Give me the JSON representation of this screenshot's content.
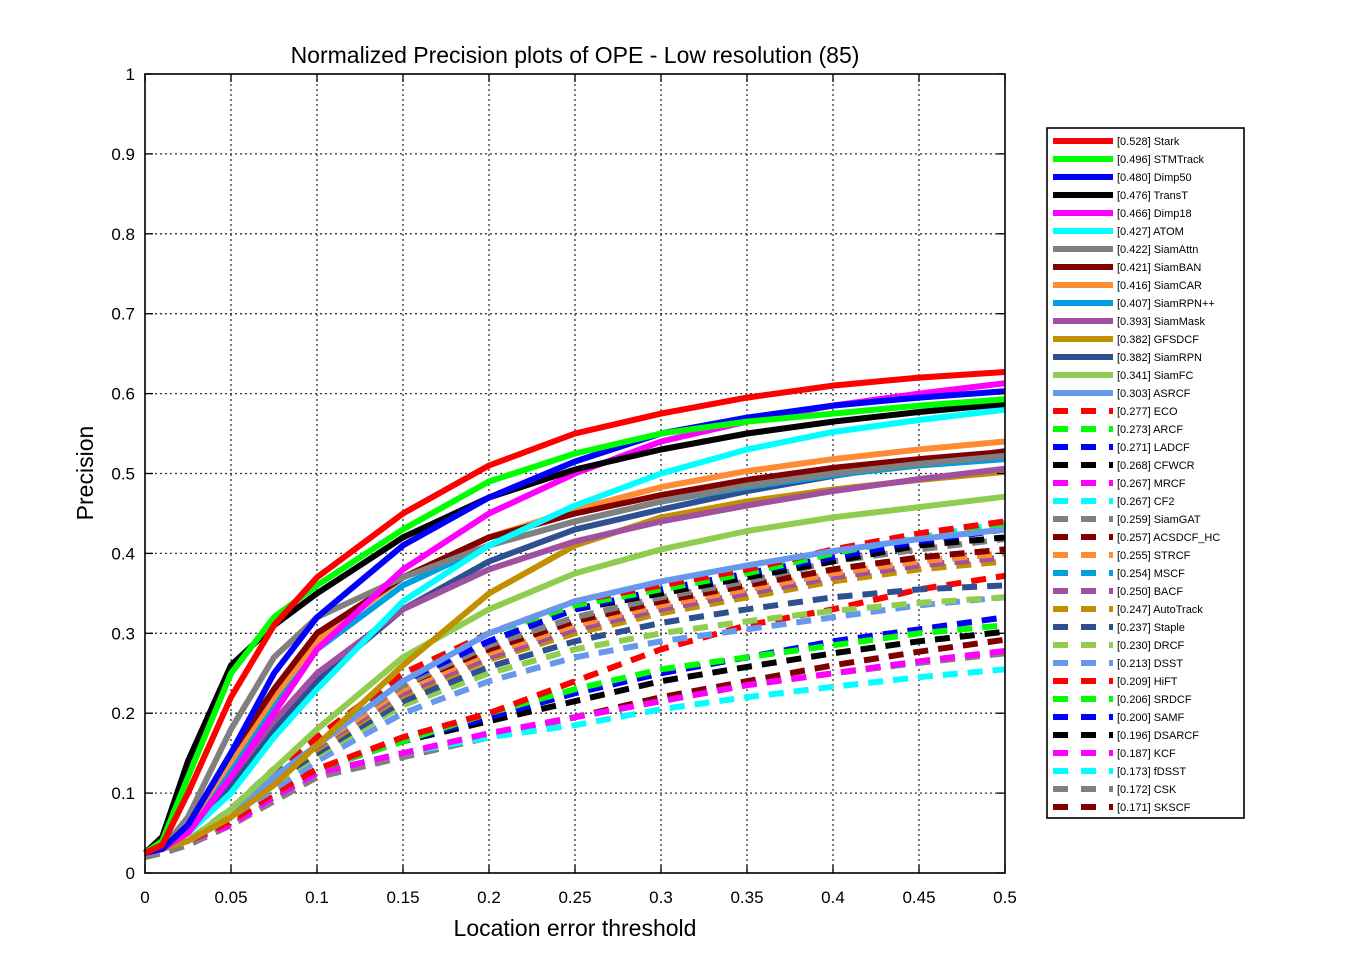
{
  "chart_data": {
    "type": "line",
    "title": "Normalized Precision plots of OPE - Low resolution (85)",
    "xlabel": "Location error threshold",
    "ylabel": "Precision",
    "xlim": [
      0,
      0.5
    ],
    "ylim": [
      0,
      1
    ],
    "xticks": [
      "0",
      "0.05",
      "0.1",
      "0.15",
      "0.2",
      "0.25",
      "0.3",
      "0.35",
      "0.4",
      "0.45",
      "0.5"
    ],
    "yticks": [
      "0",
      "0.1",
      "0.2",
      "0.3",
      "0.4",
      "0.5",
      "0.6",
      "0.7",
      "0.8",
      "0.9",
      "1"
    ],
    "grid": true,
    "legend_position": "outside-right",
    "x": [
      0,
      0.01,
      0.025,
      0.05,
      0.075,
      0.1,
      0.15,
      0.2,
      0.25,
      0.3,
      0.35,
      0.4,
      0.45,
      0.5
    ],
    "series": [
      {
        "name": "[0.528] Stark",
        "color": "#FF0000",
        "dash": "solid",
        "values": [
          0.025,
          0.035,
          0.1,
          0.22,
          0.31,
          0.37,
          0.45,
          0.51,
          0.55,
          0.575,
          0.595,
          0.61,
          0.62,
          0.627
        ]
      },
      {
        "name": "[0.496] STMTrack",
        "color": "#00FF00",
        "dash": "solid",
        "values": [
          0.025,
          0.04,
          0.12,
          0.25,
          0.32,
          0.36,
          0.43,
          0.49,
          0.525,
          0.55,
          0.565,
          0.575,
          0.585,
          0.593
        ]
      },
      {
        "name": "[0.480] Dimp50",
        "color": "#0000FF",
        "dash": "solid",
        "values": [
          0.025,
          0.03,
          0.06,
          0.15,
          0.25,
          0.32,
          0.41,
          0.47,
          0.515,
          0.55,
          0.57,
          0.585,
          0.595,
          0.603
        ]
      },
      {
        "name": "[0.476] TransT",
        "color": "#000000",
        "dash": "solid",
        "values": [
          0.025,
          0.045,
          0.14,
          0.26,
          0.31,
          0.35,
          0.42,
          0.47,
          0.505,
          0.53,
          0.55,
          0.565,
          0.577,
          0.587
        ]
      },
      {
        "name": "[0.466] Dimp18",
        "color": "#FF00FF",
        "dash": "solid",
        "values": [
          0.025,
          0.03,
          0.05,
          0.12,
          0.2,
          0.28,
          0.38,
          0.45,
          0.5,
          0.54,
          0.565,
          0.585,
          0.6,
          0.613
        ]
      },
      {
        "name": "[0.427] ATOM",
        "color": "#00FFFF",
        "dash": "solid",
        "values": [
          0.025,
          0.03,
          0.05,
          0.1,
          0.17,
          0.23,
          0.34,
          0.41,
          0.46,
          0.5,
          0.53,
          0.552,
          0.567,
          0.58
        ]
      },
      {
        "name": "[0.422] SiamAttn",
        "color": "#808080",
        "dash": "solid",
        "values": [
          0.025,
          0.03,
          0.07,
          0.18,
          0.27,
          0.32,
          0.37,
          0.41,
          0.44,
          0.465,
          0.485,
          0.5,
          0.512,
          0.522
        ]
      },
      {
        "name": "[0.421] SiamBAN",
        "color": "#800000",
        "dash": "solid",
        "values": [
          0.025,
          0.03,
          0.06,
          0.15,
          0.23,
          0.3,
          0.37,
          0.42,
          0.45,
          0.473,
          0.492,
          0.507,
          0.518,
          0.527
        ]
      },
      {
        "name": "[0.416] SiamCAR",
        "color": "#FF8C35",
        "dash": "solid",
        "values": [
          0.025,
          0.03,
          0.06,
          0.14,
          0.22,
          0.29,
          0.37,
          0.42,
          0.455,
          0.483,
          0.503,
          0.518,
          0.53,
          0.54
        ]
      },
      {
        "name": "[0.407] SiamRPN++",
        "color": "#00A0E0",
        "dash": "solid",
        "values": [
          0.025,
          0.03,
          0.06,
          0.13,
          0.21,
          0.28,
          0.36,
          0.41,
          0.44,
          0.465,
          0.483,
          0.498,
          0.51,
          0.518
        ]
      },
      {
        "name": "[0.393] SiamMask",
        "color": "#A050A0",
        "dash": "solid",
        "values": [
          0.025,
          0.03,
          0.055,
          0.12,
          0.19,
          0.25,
          0.33,
          0.38,
          0.415,
          0.44,
          0.46,
          0.478,
          0.493,
          0.506
        ]
      },
      {
        "name": "[0.382] GFSDCF",
        "color": "#C09000",
        "dash": "solid",
        "values": [
          0.025,
          0.03,
          0.04,
          0.07,
          0.11,
          0.16,
          0.26,
          0.35,
          0.41,
          0.445,
          0.465,
          0.48,
          0.492,
          0.502
        ]
      },
      {
        "name": "[0.382] SiamRPN",
        "color": "#2E5090",
        "dash": "solid",
        "values": [
          0.025,
          0.03,
          0.05,
          0.11,
          0.18,
          0.24,
          0.33,
          0.39,
          0.43,
          0.455,
          0.478,
          0.497,
          0.513,
          0.528
        ]
      },
      {
        "name": "[0.341] SiamFC",
        "color": "#90CC50",
        "dash": "solid",
        "values": [
          0.025,
          0.03,
          0.04,
          0.08,
          0.13,
          0.18,
          0.27,
          0.33,
          0.375,
          0.405,
          0.428,
          0.445,
          0.458,
          0.471
        ]
      },
      {
        "name": "[0.303] ASRCF",
        "color": "#6699EE",
        "dash": "solid",
        "values": [
          0.025,
          0.03,
          0.04,
          0.07,
          0.12,
          0.16,
          0.24,
          0.3,
          0.34,
          0.365,
          0.385,
          0.403,
          0.418,
          0.43
        ]
      },
      {
        "name": "[0.277] ECO",
        "color": "#FF0000",
        "dash": "dash",
        "values": [
          0.025,
          0.03,
          0.04,
          0.08,
          0.13,
          0.17,
          0.25,
          0.3,
          0.34,
          0.36,
          0.38,
          0.405,
          0.425,
          0.44
        ]
      },
      {
        "name": "[0.273] ARCF",
        "color": "#00FF00",
        "dash": "dash",
        "values": [
          0.025,
          0.03,
          0.04,
          0.08,
          0.13,
          0.17,
          0.25,
          0.3,
          0.335,
          0.355,
          0.375,
          0.4,
          0.42,
          0.435
        ]
      },
      {
        "name": "[0.271] LADCF",
        "color": "#0000FF",
        "dash": "dash",
        "values": [
          0.025,
          0.03,
          0.04,
          0.08,
          0.13,
          0.17,
          0.24,
          0.29,
          0.33,
          0.355,
          0.375,
          0.395,
          0.415,
          0.43
        ]
      },
      {
        "name": "[0.268] CFWCR",
        "color": "#000000",
        "dash": "dash",
        "values": [
          0.025,
          0.03,
          0.04,
          0.08,
          0.13,
          0.17,
          0.24,
          0.29,
          0.33,
          0.35,
          0.37,
          0.39,
          0.41,
          0.42
        ]
      },
      {
        "name": "[0.267] MRCF",
        "color": "#FF00FF",
        "dash": "dash",
        "values": [
          0.025,
          0.03,
          0.04,
          0.08,
          0.13,
          0.17,
          0.24,
          0.29,
          0.33,
          0.35,
          0.37,
          0.395,
          0.415,
          0.43
        ]
      },
      {
        "name": "[0.267] CF2",
        "color": "#00FFFF",
        "dash": "dash",
        "values": [
          0.025,
          0.03,
          0.04,
          0.08,
          0.13,
          0.17,
          0.24,
          0.29,
          0.33,
          0.355,
          0.375,
          0.4,
          0.42,
          0.438
        ]
      },
      {
        "name": "[0.259] SiamGAT",
        "color": "#808080",
        "dash": "dash",
        "values": [
          0.025,
          0.03,
          0.04,
          0.08,
          0.125,
          0.165,
          0.235,
          0.285,
          0.32,
          0.345,
          0.365,
          0.39,
          0.405,
          0.418
        ]
      },
      {
        "name": "[0.257] ACSDCF_HC",
        "color": "#800000",
        "dash": "dash",
        "values": [
          0.025,
          0.03,
          0.04,
          0.08,
          0.125,
          0.165,
          0.235,
          0.28,
          0.315,
          0.34,
          0.36,
          0.38,
          0.395,
          0.405
        ]
      },
      {
        "name": "[0.255] STRCF",
        "color": "#FF8C35",
        "dash": "dash",
        "values": [
          0.025,
          0.03,
          0.04,
          0.08,
          0.12,
          0.16,
          0.23,
          0.275,
          0.31,
          0.335,
          0.355,
          0.375,
          0.39,
          0.4
        ]
      },
      {
        "name": "[0.254] MSCF",
        "color": "#00A0E0",
        "dash": "dash",
        "values": [
          0.025,
          0.03,
          0.04,
          0.08,
          0.12,
          0.16,
          0.23,
          0.275,
          0.31,
          0.335,
          0.355,
          0.375,
          0.39,
          0.4
        ]
      },
      {
        "name": "[0.250] BACF",
        "color": "#A050A0",
        "dash": "dash",
        "values": [
          0.025,
          0.03,
          0.04,
          0.078,
          0.12,
          0.158,
          0.225,
          0.27,
          0.305,
          0.33,
          0.35,
          0.37,
          0.385,
          0.395
        ]
      },
      {
        "name": "[0.247] AutoTrack",
        "color": "#C09000",
        "dash": "dash",
        "values": [
          0.025,
          0.03,
          0.04,
          0.077,
          0.118,
          0.155,
          0.222,
          0.267,
          0.3,
          0.325,
          0.345,
          0.365,
          0.38,
          0.39
        ]
      },
      {
        "name": "[0.237] Staple",
        "color": "#2E5090",
        "dash": "dash",
        "values": [
          0.025,
          0.03,
          0.04,
          0.075,
          0.115,
          0.15,
          0.215,
          0.258,
          0.29,
          0.313,
          0.33,
          0.345,
          0.355,
          0.36
        ]
      },
      {
        "name": "[0.230] DRCF",
        "color": "#90CC50",
        "dash": "dash",
        "values": [
          0.025,
          0.03,
          0.04,
          0.073,
          0.112,
          0.147,
          0.21,
          0.25,
          0.28,
          0.3,
          0.315,
          0.328,
          0.338,
          0.345
        ]
      },
      {
        "name": "[0.213] DSST",
        "color": "#6699EE",
        "dash": "dash",
        "values": [
          0.025,
          0.03,
          0.04,
          0.07,
          0.105,
          0.14,
          0.2,
          0.24,
          0.27,
          0.29,
          0.305,
          0.32,
          0.335,
          0.345
        ]
      },
      {
        "name": "[0.209] HiFT",
        "color": "#FF0000",
        "dash": "dash",
        "values": [
          0.025,
          0.03,
          0.04,
          0.065,
          0.1,
          0.13,
          0.17,
          0.2,
          0.24,
          0.28,
          0.31,
          0.33,
          0.355,
          0.372
        ]
      },
      {
        "name": "[0.206] SRDCF",
        "color": "#00FF00",
        "dash": "dash",
        "values": [
          0.025,
          0.03,
          0.04,
          0.065,
          0.1,
          0.13,
          0.165,
          0.2,
          0.23,
          0.255,
          0.27,
          0.285,
          0.3,
          0.31
        ]
      },
      {
        "name": "[0.200] SAMF",
        "color": "#0000FF",
        "dash": "dash",
        "values": [
          0.025,
          0.03,
          0.04,
          0.065,
          0.1,
          0.13,
          0.165,
          0.195,
          0.225,
          0.25,
          0.27,
          0.29,
          0.305,
          0.32
        ]
      },
      {
        "name": "[0.196] DSARCF",
        "color": "#000000",
        "dash": "dash",
        "values": [
          0.025,
          0.03,
          0.04,
          0.065,
          0.1,
          0.13,
          0.165,
          0.19,
          0.215,
          0.24,
          0.258,
          0.275,
          0.29,
          0.302
        ]
      },
      {
        "name": "[0.187] KCF",
        "color": "#FF00FF",
        "dash": "dash",
        "values": [
          0.025,
          0.03,
          0.04,
          0.06,
          0.095,
          0.125,
          0.15,
          0.175,
          0.195,
          0.215,
          0.235,
          0.25,
          0.265,
          0.278
        ]
      },
      {
        "name": "[0.173] fDSST",
        "color": "#00FFFF",
        "dash": "dash",
        "values": [
          0.025,
          0.03,
          0.04,
          0.06,
          0.095,
          0.125,
          0.15,
          0.17,
          0.185,
          0.205,
          0.22,
          0.233,
          0.245,
          0.255
        ]
      },
      {
        "name": "[0.172] CSK",
        "color": "#808080",
        "dash": "dash",
        "values": [
          0.02,
          0.025,
          0.035,
          0.06,
          0.09,
          0.12,
          0.145,
          0.17,
          0.195,
          0.215,
          0.235,
          0.25,
          0.263,
          0.275
        ]
      },
      {
        "name": "[0.171] SKSCF",
        "color": "#800000",
        "dash": "dash",
        "values": [
          0.02,
          0.025,
          0.035,
          0.06,
          0.09,
          0.12,
          0.145,
          0.17,
          0.195,
          0.22,
          0.24,
          0.26,
          0.277,
          0.292
        ]
      }
    ]
  }
}
